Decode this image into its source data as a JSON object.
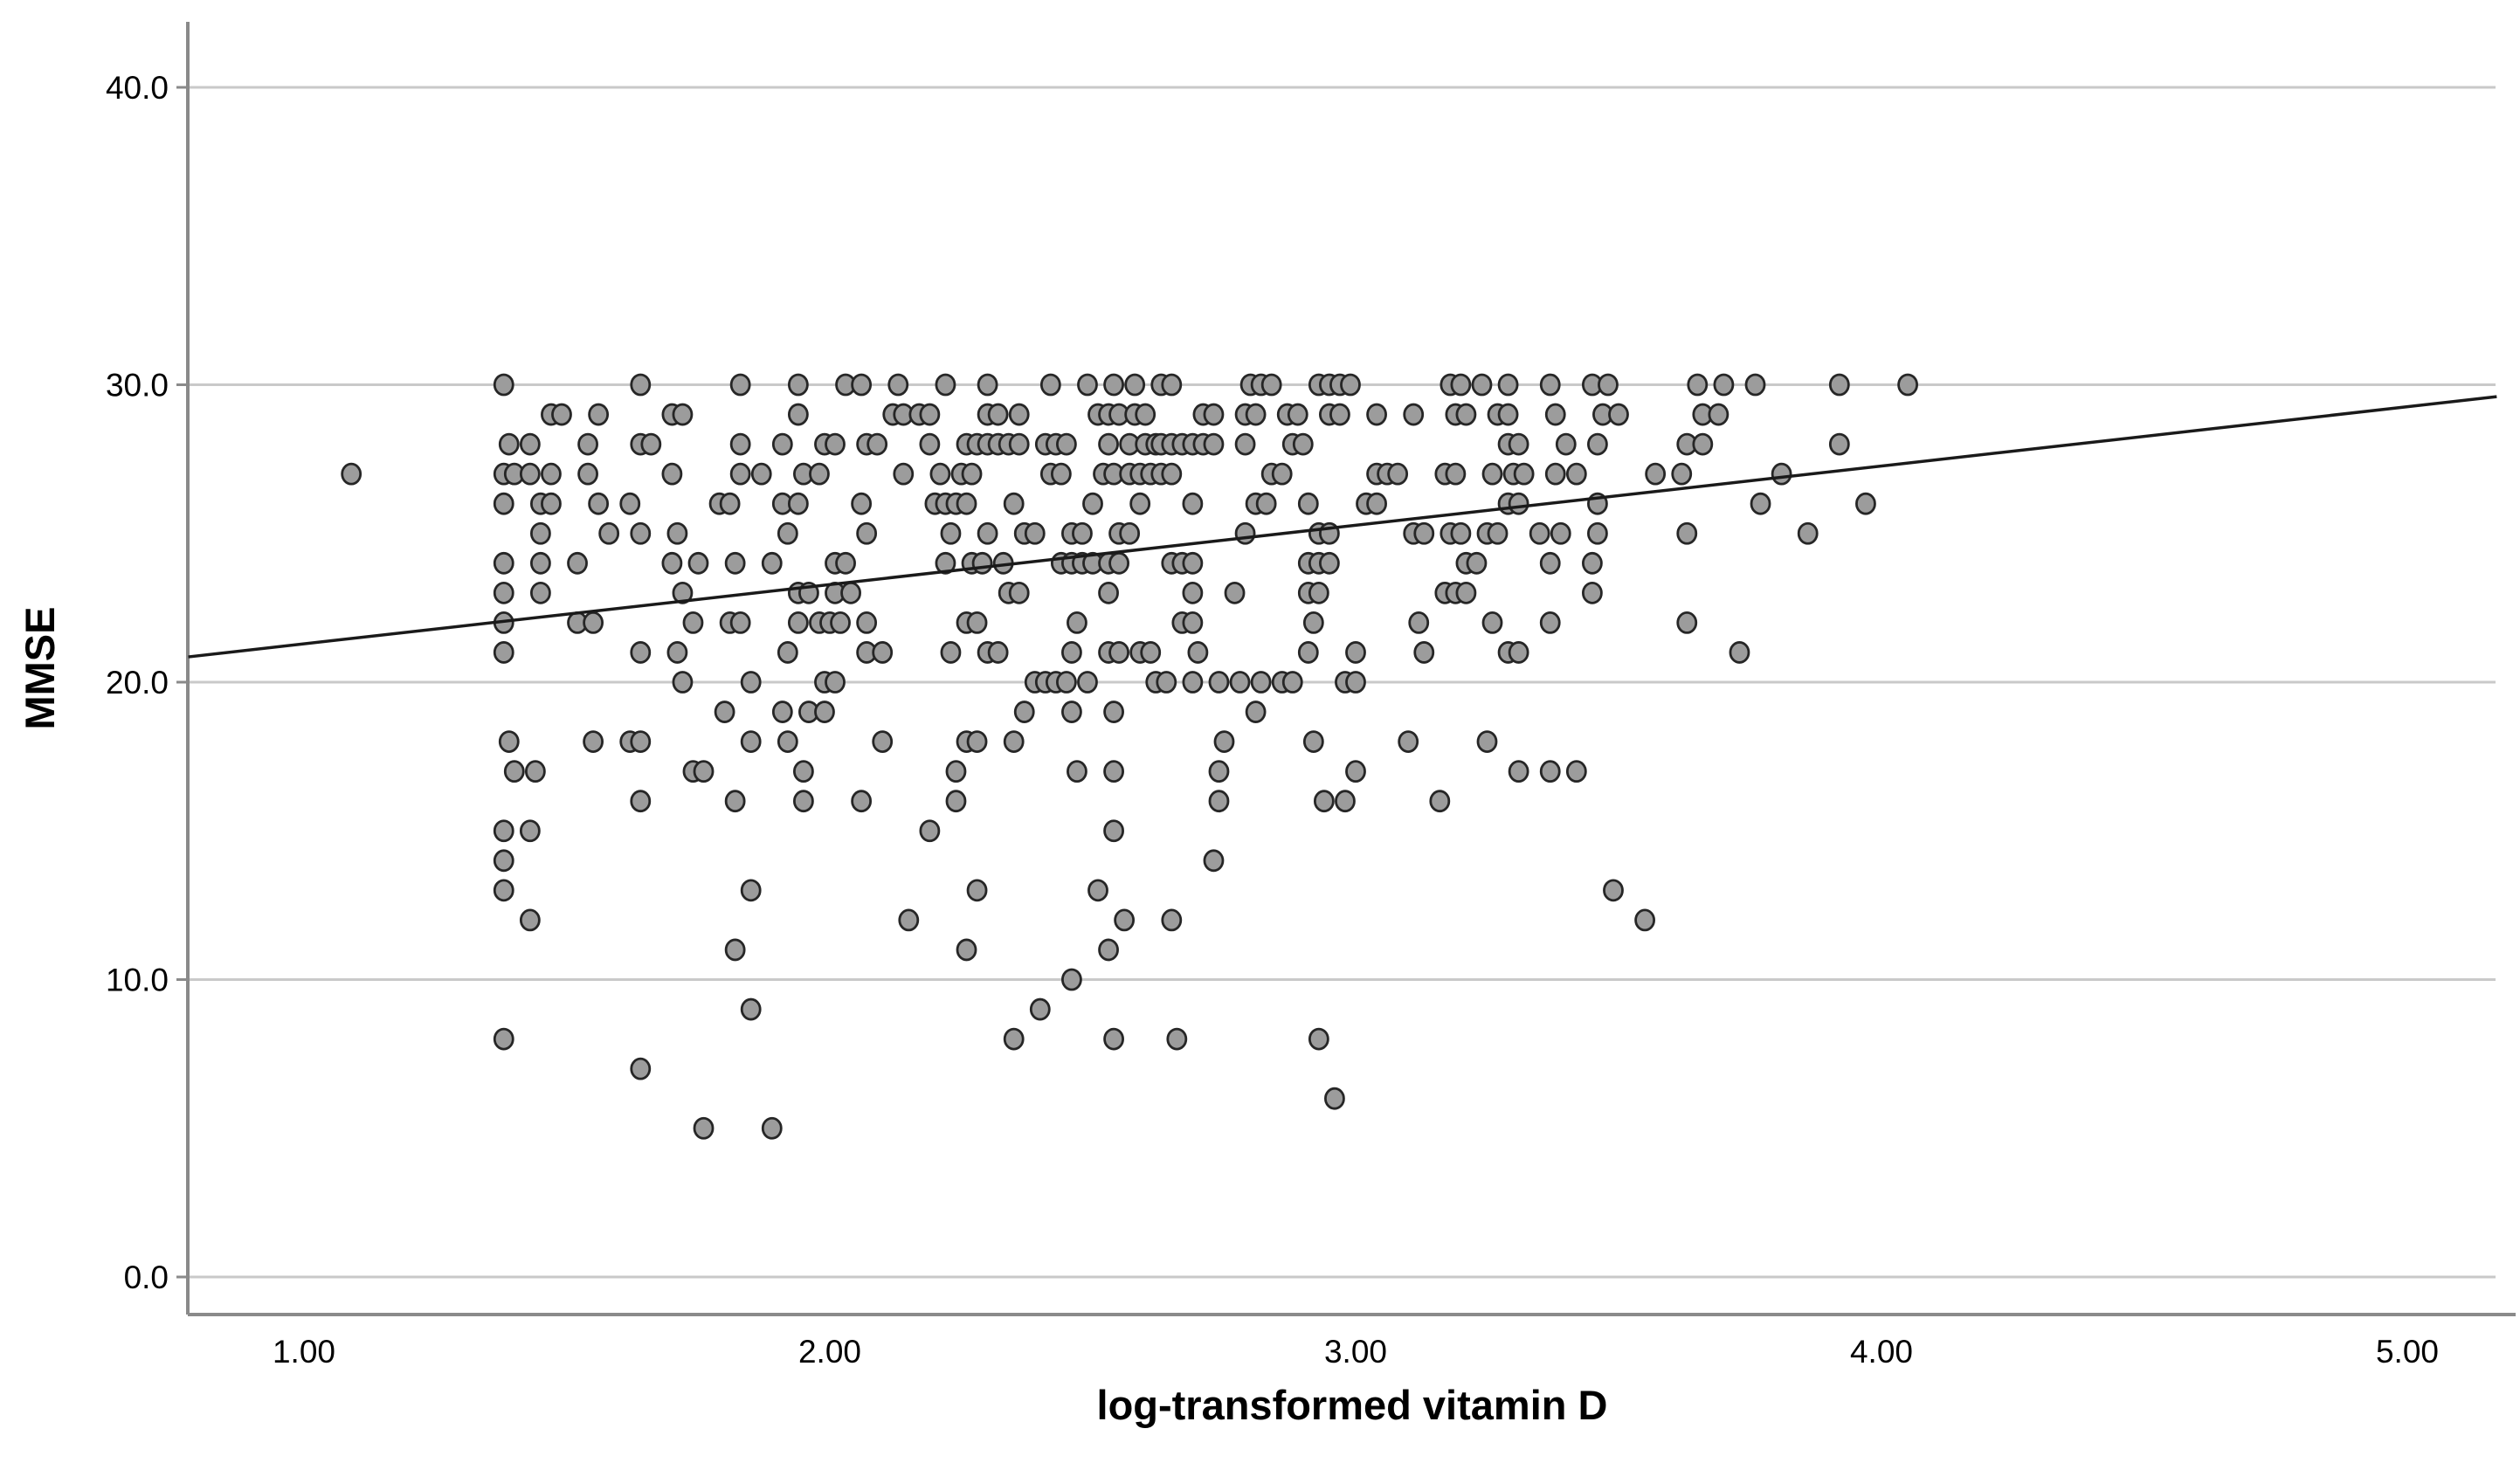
{
  "chart_data": {
    "type": "scatter",
    "title": "",
    "xlabel": "log-transformed vitamin D",
    "ylabel": "MMSE",
    "x_tick_labels": [
      "1.00",
      "2.00",
      "3.00",
      "4.00",
      "5.00"
    ],
    "x_tick_values": [
      1,
      2,
      3,
      4,
      5
    ],
    "y_tick_labels": [
      "0.0",
      "10.0",
      "20.0",
      "30.0",
      "40.0"
    ],
    "y_tick_values": [
      0,
      10,
      20,
      30,
      40
    ],
    "xlim": [
      0.78,
      5.21
    ],
    "ylim": [
      -1.4,
      42.3
    ],
    "grid": "horizontal-only",
    "legend_position": "none",
    "colors": {
      "marker_fill": "#9c9c9c",
      "marker_stroke": "#262626",
      "gridline": "#c9c9c9",
      "axis_line": "#8a8a8a",
      "trendline": "#1a1a1a",
      "text": "#000000",
      "background": "#ffffff"
    },
    "trendline": {
      "x1": 0.78,
      "y1": 20.85,
      "x2": 5.17,
      "y2": 29.6
    },
    "points": [
      [
        1.38,
        30
      ],
      [
        1.64,
        30
      ],
      [
        1.83,
        30
      ],
      [
        1.94,
        30
      ],
      [
        2.03,
        30
      ],
      [
        2.06,
        30
      ],
      [
        2.13,
        30
      ],
      [
        2.22,
        30
      ],
      [
        2.3,
        30
      ],
      [
        2.42,
        30
      ],
      [
        2.49,
        30
      ],
      [
        2.54,
        30
      ],
      [
        2.58,
        30
      ],
      [
        2.63,
        30
      ],
      [
        2.65,
        30
      ],
      [
        2.8,
        30
      ],
      [
        2.82,
        30
      ],
      [
        2.84,
        30
      ],
      [
        2.93,
        30
      ],
      [
        2.95,
        30
      ],
      [
        2.97,
        30
      ],
      [
        2.99,
        30
      ],
      [
        3.18,
        30
      ],
      [
        3.2,
        30
      ],
      [
        3.24,
        30
      ],
      [
        3.29,
        30
      ],
      [
        3.37,
        30
      ],
      [
        3.45,
        30
      ],
      [
        3.48,
        30
      ],
      [
        3.65,
        30
      ],
      [
        3.7,
        30
      ],
      [
        3.76,
        30
      ],
      [
        3.92,
        30
      ],
      [
        4.05,
        30
      ],
      [
        1.47,
        29
      ],
      [
        1.49,
        29
      ],
      [
        1.56,
        29
      ],
      [
        1.7,
        29
      ],
      [
        1.72,
        29
      ],
      [
        1.94,
        29
      ],
      [
        2.12,
        29
      ],
      [
        2.14,
        29
      ],
      [
        2.17,
        29
      ],
      [
        2.19,
        29
      ],
      [
        2.3,
        29
      ],
      [
        2.32,
        29
      ],
      [
        2.36,
        29
      ],
      [
        2.51,
        29
      ],
      [
        2.53,
        29
      ],
      [
        2.55,
        29
      ],
      [
        2.58,
        29
      ],
      [
        2.6,
        29
      ],
      [
        2.71,
        29
      ],
      [
        2.73,
        29
      ],
      [
        2.79,
        29
      ],
      [
        2.81,
        29
      ],
      [
        2.87,
        29
      ],
      [
        2.89,
        29
      ],
      [
        2.95,
        29
      ],
      [
        2.97,
        29
      ],
      [
        3.04,
        29
      ],
      [
        3.11,
        29
      ],
      [
        3.19,
        29
      ],
      [
        3.21,
        29
      ],
      [
        3.27,
        29
      ],
      [
        3.29,
        29
      ],
      [
        3.38,
        29
      ],
      [
        3.47,
        29
      ],
      [
        3.5,
        29
      ],
      [
        3.66,
        29
      ],
      [
        3.69,
        29
      ],
      [
        1.39,
        28
      ],
      [
        1.43,
        28
      ],
      [
        1.54,
        28
      ],
      [
        1.64,
        28
      ],
      [
        1.66,
        28
      ],
      [
        1.83,
        28
      ],
      [
        1.91,
        28
      ],
      [
        1.99,
        28
      ],
      [
        2.01,
        28
      ],
      [
        2.07,
        28
      ],
      [
        2.09,
        28
      ],
      [
        2.19,
        28
      ],
      [
        2.26,
        28
      ],
      [
        2.28,
        28
      ],
      [
        2.3,
        28
      ],
      [
        2.32,
        28
      ],
      [
        2.34,
        28
      ],
      [
        2.36,
        28
      ],
      [
        2.41,
        28
      ],
      [
        2.43,
        28
      ],
      [
        2.45,
        28
      ],
      [
        2.53,
        28
      ],
      [
        2.57,
        28
      ],
      [
        2.6,
        28
      ],
      [
        2.62,
        28
      ],
      [
        2.63,
        28
      ],
      [
        2.65,
        28
      ],
      [
        2.67,
        28
      ],
      [
        2.69,
        28
      ],
      [
        2.71,
        28
      ],
      [
        2.73,
        28
      ],
      [
        2.79,
        28
      ],
      [
        2.88,
        28
      ],
      [
        2.9,
        28
      ],
      [
        3.29,
        28
      ],
      [
        3.31,
        28
      ],
      [
        3.4,
        28
      ],
      [
        3.46,
        28
      ],
      [
        3.63,
        28
      ],
      [
        3.66,
        28
      ],
      [
        3.92,
        28
      ],
      [
        1.09,
        27
      ],
      [
        1.38,
        27
      ],
      [
        1.4,
        27
      ],
      [
        1.43,
        27
      ],
      [
        1.47,
        27
      ],
      [
        1.54,
        27
      ],
      [
        1.7,
        27
      ],
      [
        1.83,
        27
      ],
      [
        1.87,
        27
      ],
      [
        1.95,
        27
      ],
      [
        1.98,
        27
      ],
      [
        2.14,
        27
      ],
      [
        2.21,
        27
      ],
      [
        2.25,
        27
      ],
      [
        2.27,
        27
      ],
      [
        2.42,
        27
      ],
      [
        2.44,
        27
      ],
      [
        2.52,
        27
      ],
      [
        2.54,
        27
      ],
      [
        2.57,
        27
      ],
      [
        2.59,
        27
      ],
      [
        2.61,
        27
      ],
      [
        2.63,
        27
      ],
      [
        2.65,
        27
      ],
      [
        2.84,
        27
      ],
      [
        2.86,
        27
      ],
      [
        3.04,
        27
      ],
      [
        3.06,
        27
      ],
      [
        3.08,
        27
      ],
      [
        3.17,
        27
      ],
      [
        3.19,
        27
      ],
      [
        3.26,
        27
      ],
      [
        3.3,
        27
      ],
      [
        3.32,
        27
      ],
      [
        3.38,
        27
      ],
      [
        3.42,
        27
      ],
      [
        3.57,
        27
      ],
      [
        3.62,
        27
      ],
      [
        3.81,
        27
      ],
      [
        1.38,
        26
      ],
      [
        1.45,
        26
      ],
      [
        1.47,
        26
      ],
      [
        1.56,
        26
      ],
      [
        1.62,
        26
      ],
      [
        1.79,
        26
      ],
      [
        1.81,
        26
      ],
      [
        1.91,
        26
      ],
      [
        1.94,
        26
      ],
      [
        2.06,
        26
      ],
      [
        2.2,
        26
      ],
      [
        2.22,
        26
      ],
      [
        2.24,
        26
      ],
      [
        2.26,
        26
      ],
      [
        2.35,
        26
      ],
      [
        2.5,
        26
      ],
      [
        2.59,
        26
      ],
      [
        2.69,
        26
      ],
      [
        2.81,
        26
      ],
      [
        2.83,
        26
      ],
      [
        2.91,
        26
      ],
      [
        3.02,
        26
      ],
      [
        3.04,
        26
      ],
      [
        3.29,
        26
      ],
      [
        3.31,
        26
      ],
      [
        3.46,
        26
      ],
      [
        3.77,
        26
      ],
      [
        3.97,
        26
      ],
      [
        1.45,
        25
      ],
      [
        1.58,
        25
      ],
      [
        1.64,
        25
      ],
      [
        1.71,
        25
      ],
      [
        1.92,
        25
      ],
      [
        2.07,
        25
      ],
      [
        2.23,
        25
      ],
      [
        2.3,
        25
      ],
      [
        2.37,
        25
      ],
      [
        2.39,
        25
      ],
      [
        2.46,
        25
      ],
      [
        2.48,
        25
      ],
      [
        2.55,
        25
      ],
      [
        2.57,
        25
      ],
      [
        2.79,
        25
      ],
      [
        2.93,
        25
      ],
      [
        2.95,
        25
      ],
      [
        3.11,
        25
      ],
      [
        3.13,
        25
      ],
      [
        3.18,
        25
      ],
      [
        3.2,
        25
      ],
      [
        3.25,
        25
      ],
      [
        3.27,
        25
      ],
      [
        3.35,
        25
      ],
      [
        3.39,
        25
      ],
      [
        3.46,
        25
      ],
      [
        3.63,
        25
      ],
      [
        3.86,
        25
      ],
      [
        1.38,
        24
      ],
      [
        1.45,
        24
      ],
      [
        1.52,
        24
      ],
      [
        1.7,
        24
      ],
      [
        1.75,
        24
      ],
      [
        1.82,
        24
      ],
      [
        1.89,
        24
      ],
      [
        2.01,
        24
      ],
      [
        2.03,
        24
      ],
      [
        2.22,
        24
      ],
      [
        2.27,
        24
      ],
      [
        2.29,
        24
      ],
      [
        2.33,
        24
      ],
      [
        2.44,
        24
      ],
      [
        2.46,
        24
      ],
      [
        2.48,
        24
      ],
      [
        2.5,
        24
      ],
      [
        2.53,
        24
      ],
      [
        2.55,
        24
      ],
      [
        2.65,
        24
      ],
      [
        2.67,
        24
      ],
      [
        2.69,
        24
      ],
      [
        2.91,
        24
      ],
      [
        2.93,
        24
      ],
      [
        2.95,
        24
      ],
      [
        3.21,
        24
      ],
      [
        3.23,
        24
      ],
      [
        3.37,
        24
      ],
      [
        3.45,
        24
      ],
      [
        1.38,
        23
      ],
      [
        1.45,
        23
      ],
      [
        1.72,
        23
      ],
      [
        1.94,
        23
      ],
      [
        1.96,
        23
      ],
      [
        2.01,
        23
      ],
      [
        2.04,
        23
      ],
      [
        2.34,
        23
      ],
      [
        2.36,
        23
      ],
      [
        2.53,
        23
      ],
      [
        2.69,
        23
      ],
      [
        2.77,
        23
      ],
      [
        2.91,
        23
      ],
      [
        2.93,
        23
      ],
      [
        3.17,
        23
      ],
      [
        3.19,
        23
      ],
      [
        3.21,
        23
      ],
      [
        3.45,
        23
      ],
      [
        1.38,
        22
      ],
      [
        1.52,
        22
      ],
      [
        1.55,
        22
      ],
      [
        1.74,
        22
      ],
      [
        1.81,
        22
      ],
      [
        1.83,
        22
      ],
      [
        1.94,
        22
      ],
      [
        1.98,
        22
      ],
      [
        2.0,
        22
      ],
      [
        2.02,
        22
      ],
      [
        2.07,
        22
      ],
      [
        2.26,
        22
      ],
      [
        2.28,
        22
      ],
      [
        2.47,
        22
      ],
      [
        2.67,
        22
      ],
      [
        2.69,
        22
      ],
      [
        2.92,
        22
      ],
      [
        3.12,
        22
      ],
      [
        3.26,
        22
      ],
      [
        3.37,
        22
      ],
      [
        3.63,
        22
      ],
      [
        1.38,
        21
      ],
      [
        1.64,
        21
      ],
      [
        1.71,
        21
      ],
      [
        1.92,
        21
      ],
      [
        2.07,
        21
      ],
      [
        2.1,
        21
      ],
      [
        2.23,
        21
      ],
      [
        2.3,
        21
      ],
      [
        2.32,
        21
      ],
      [
        2.46,
        21
      ],
      [
        2.53,
        21
      ],
      [
        2.55,
        21
      ],
      [
        2.59,
        21
      ],
      [
        2.61,
        21
      ],
      [
        2.7,
        21
      ],
      [
        2.91,
        21
      ],
      [
        3.0,
        21
      ],
      [
        3.13,
        21
      ],
      [
        3.29,
        21
      ],
      [
        3.31,
        21
      ],
      [
        3.73,
        21
      ],
      [
        1.72,
        20
      ],
      [
        1.85,
        20
      ],
      [
        1.99,
        20
      ],
      [
        2.01,
        20
      ],
      [
        2.39,
        20
      ],
      [
        2.41,
        20
      ],
      [
        2.43,
        20
      ],
      [
        2.45,
        20
      ],
      [
        2.49,
        20
      ],
      [
        2.62,
        20
      ],
      [
        2.64,
        20
      ],
      [
        2.69,
        20
      ],
      [
        2.74,
        20
      ],
      [
        2.78,
        20
      ],
      [
        2.82,
        20
      ],
      [
        2.86,
        20
      ],
      [
        2.88,
        20
      ],
      [
        2.98,
        20
      ],
      [
        3.0,
        20
      ],
      [
        1.8,
        19
      ],
      [
        1.91,
        19
      ],
      [
        1.96,
        19
      ],
      [
        1.99,
        19
      ],
      [
        2.37,
        19
      ],
      [
        2.46,
        19
      ],
      [
        2.54,
        19
      ],
      [
        2.81,
        19
      ],
      [
        1.39,
        18
      ],
      [
        1.55,
        18
      ],
      [
        1.62,
        18
      ],
      [
        1.64,
        18
      ],
      [
        1.85,
        18
      ],
      [
        1.92,
        18
      ],
      [
        2.1,
        18
      ],
      [
        2.26,
        18
      ],
      [
        2.28,
        18
      ],
      [
        2.35,
        18
      ],
      [
        2.75,
        18
      ],
      [
        2.92,
        18
      ],
      [
        3.1,
        18
      ],
      [
        3.25,
        18
      ],
      [
        1.4,
        17
      ],
      [
        1.44,
        17
      ],
      [
        1.74,
        17
      ],
      [
        1.76,
        17
      ],
      [
        1.95,
        17
      ],
      [
        2.24,
        17
      ],
      [
        2.47,
        17
      ],
      [
        2.54,
        17
      ],
      [
        2.74,
        17
      ],
      [
        3.0,
        17
      ],
      [
        3.31,
        17
      ],
      [
        3.37,
        17
      ],
      [
        3.42,
        17
      ],
      [
        1.64,
        16
      ],
      [
        1.82,
        16
      ],
      [
        1.95,
        16
      ],
      [
        2.06,
        16
      ],
      [
        2.24,
        16
      ],
      [
        2.74,
        16
      ],
      [
        2.94,
        16
      ],
      [
        2.98,
        16
      ],
      [
        3.16,
        16
      ],
      [
        1.38,
        15
      ],
      [
        1.43,
        15
      ],
      [
        2.19,
        15
      ],
      [
        2.54,
        15
      ],
      [
        1.38,
        14
      ],
      [
        2.73,
        14
      ],
      [
        1.38,
        13
      ],
      [
        1.85,
        13
      ],
      [
        2.28,
        13
      ],
      [
        2.51,
        13
      ],
      [
        3.49,
        13
      ],
      [
        1.43,
        12
      ],
      [
        2.15,
        12
      ],
      [
        2.56,
        12
      ],
      [
        2.65,
        12
      ],
      [
        3.55,
        12
      ],
      [
        1.82,
        11
      ],
      [
        2.26,
        11
      ],
      [
        2.53,
        11
      ],
      [
        2.46,
        10
      ],
      [
        1.85,
        9
      ],
      [
        2.4,
        9
      ],
      [
        1.38,
        8
      ],
      [
        2.35,
        8
      ],
      [
        2.54,
        8
      ],
      [
        2.66,
        8
      ],
      [
        2.93,
        8
      ],
      [
        1.64,
        7
      ],
      [
        2.96,
        6
      ],
      [
        1.76,
        5
      ],
      [
        1.89,
        5
      ]
    ]
  }
}
